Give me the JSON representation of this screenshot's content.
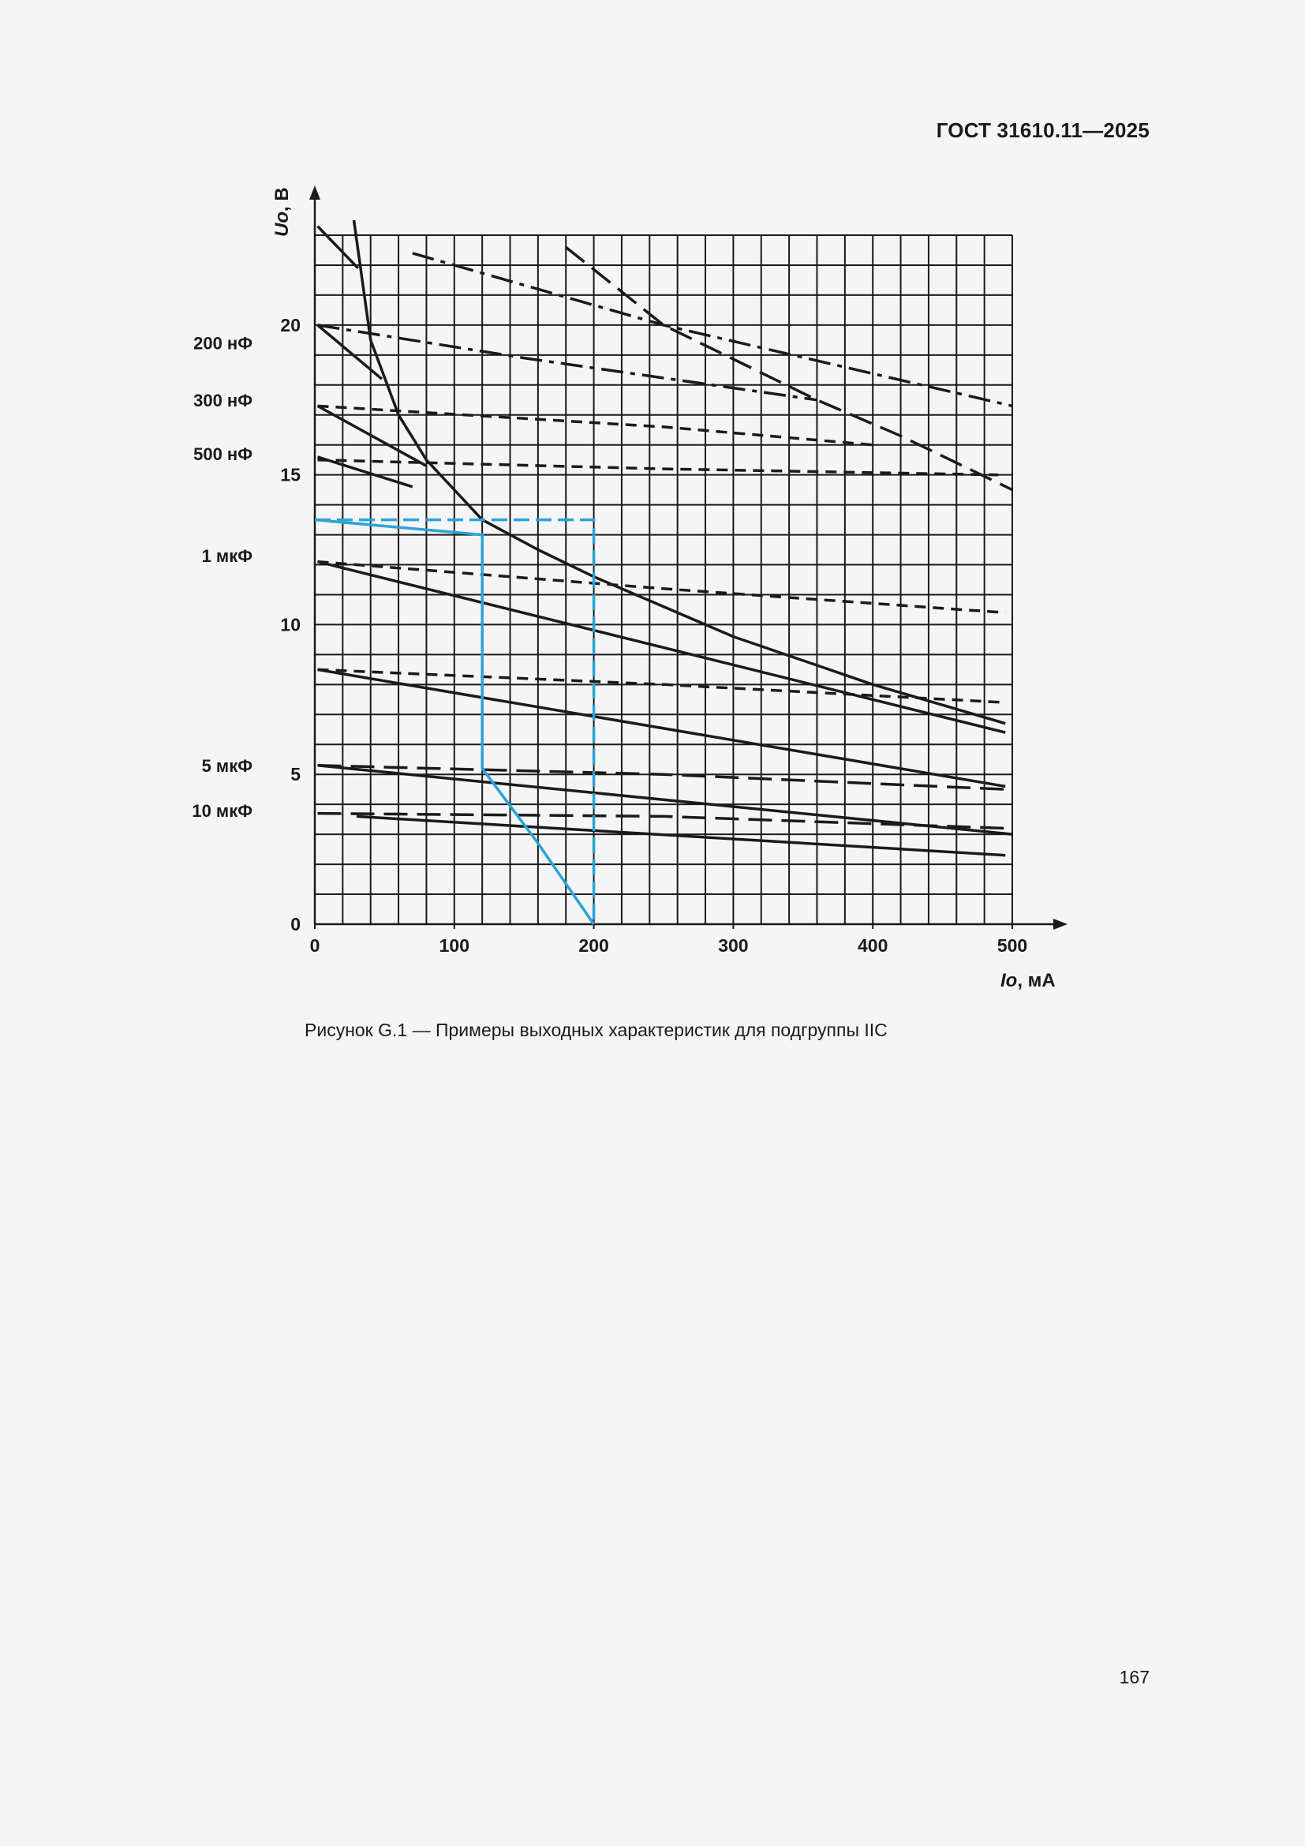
{
  "header": {
    "standard": "ГОСТ 31610.11—2025"
  },
  "caption": "Рисунок G.1 — Примеры выходных характеристик для подгруппы IIC",
  "page_number": "167",
  "colors": {
    "ink": "#1a1a1a",
    "highlight": "#2aa3d6",
    "background": "#f5f5f5"
  },
  "chart_data": {
    "type": "line",
    "title": "",
    "xlabel": "Io, мА",
    "ylabel": "Uo, В",
    "xlim": [
      0,
      500
    ],
    "ylim": [
      0,
      23
    ],
    "x_ticks": [
      0,
      100,
      200,
      300,
      400,
      500
    ],
    "y_ticks": [
      0,
      5,
      10,
      15,
      20
    ],
    "grid": true,
    "grid_step_x": 20,
    "grid_step_y": 1,
    "capacitance_labels": [
      {
        "text": "200 нФ",
        "y": 19.4
      },
      {
        "text": "300 нФ",
        "y": 17.5
      },
      {
        "text": "500 нФ",
        "y": 15.7
      },
      {
        "text": "1 мкФ",
        "y": 12.3
      },
      {
        "text": "5 мкФ",
        "y": 5.3
      },
      {
        "text": "10 мкФ",
        "y": 3.8
      }
    ],
    "series": [
      {
        "style": "solid",
        "points": [
          [
            28,
            23.5
          ],
          [
            40,
            19.5
          ],
          [
            60,
            17.0
          ],
          [
            80,
            15.5
          ],
          [
            120,
            13.5
          ],
          [
            160,
            12.5
          ],
          [
            200,
            11.6
          ],
          [
            300,
            9.6
          ],
          [
            400,
            8.0
          ],
          [
            495,
            6.7
          ]
        ]
      },
      {
        "style": "solid",
        "points": [
          [
            2,
            23.3
          ],
          [
            31,
            21.9
          ]
        ]
      },
      {
        "style": "solid",
        "points": [
          [
            2,
            20.0
          ],
          [
            48,
            18.2
          ]
        ]
      },
      {
        "style": "solid",
        "points": [
          [
            2,
            17.3
          ],
          [
            80,
            15.3
          ]
        ]
      },
      {
        "style": "solid",
        "points": [
          [
            2,
            15.6
          ],
          [
            70,
            14.6
          ]
        ]
      },
      {
        "style": "solid",
        "points": [
          [
            2,
            12.1
          ],
          [
            495,
            6.4
          ]
        ]
      },
      {
        "style": "solid",
        "points": [
          [
            2,
            8.5
          ],
          [
            495,
            4.6
          ]
        ]
      },
      {
        "style": "solid",
        "points": [
          [
            2,
            5.3
          ],
          [
            500,
            3.0
          ]
        ]
      },
      {
        "style": "solid",
        "points": [
          [
            30,
            3.6
          ],
          [
            495,
            2.3
          ]
        ]
      },
      {
        "style": "longdash",
        "points": [
          [
            180,
            22.6
          ],
          [
            250,
            20.0
          ],
          [
            360,
            17.5
          ],
          [
            420,
            16.3
          ],
          [
            500,
            14.5
          ]
        ]
      },
      {
        "style": "dashdot",
        "points": [
          [
            70,
            22.4
          ],
          [
            250,
            20.0
          ],
          [
            500,
            17.3
          ]
        ]
      },
      {
        "style": "dashdot",
        "points": [
          [
            2,
            20.0
          ],
          [
            150,
            18.9
          ],
          [
            300,
            17.9
          ],
          [
            360,
            17.5
          ]
        ]
      },
      {
        "style": "dashed",
        "points": [
          [
            2,
            17.3
          ],
          [
            250,
            16.6
          ],
          [
            400,
            16.0
          ]
        ]
      },
      {
        "style": "dashed",
        "points": [
          [
            2,
            15.5
          ],
          [
            250,
            15.2
          ],
          [
            490,
            15.0
          ]
        ]
      },
      {
        "style": "dashed",
        "points": [
          [
            2,
            12.1
          ],
          [
            250,
            11.2
          ],
          [
            495,
            10.4
          ]
        ]
      },
      {
        "style": "dashed",
        "points": [
          [
            2,
            8.5
          ],
          [
            250,
            8.0
          ],
          [
            495,
            7.4
          ]
        ]
      },
      {
        "style": "longdash",
        "points": [
          [
            2,
            5.3
          ],
          [
            250,
            5.0
          ],
          [
            495,
            4.5
          ]
        ]
      },
      {
        "style": "longdash",
        "points": [
          [
            2,
            3.7
          ],
          [
            250,
            3.6
          ],
          [
            495,
            3.2
          ]
        ]
      }
    ],
    "highlight": {
      "color": "#2aa3d6",
      "solid": [
        [
          0,
          13.5
        ],
        [
          120,
          13.0
        ],
        [
          120,
          5.2
        ],
        [
          160,
          2.7
        ],
        [
          200,
          0
        ]
      ],
      "dashed": [
        [
          0,
          13.5
        ],
        [
          200,
          13.5
        ],
        [
          200,
          0
        ]
      ]
    }
  }
}
